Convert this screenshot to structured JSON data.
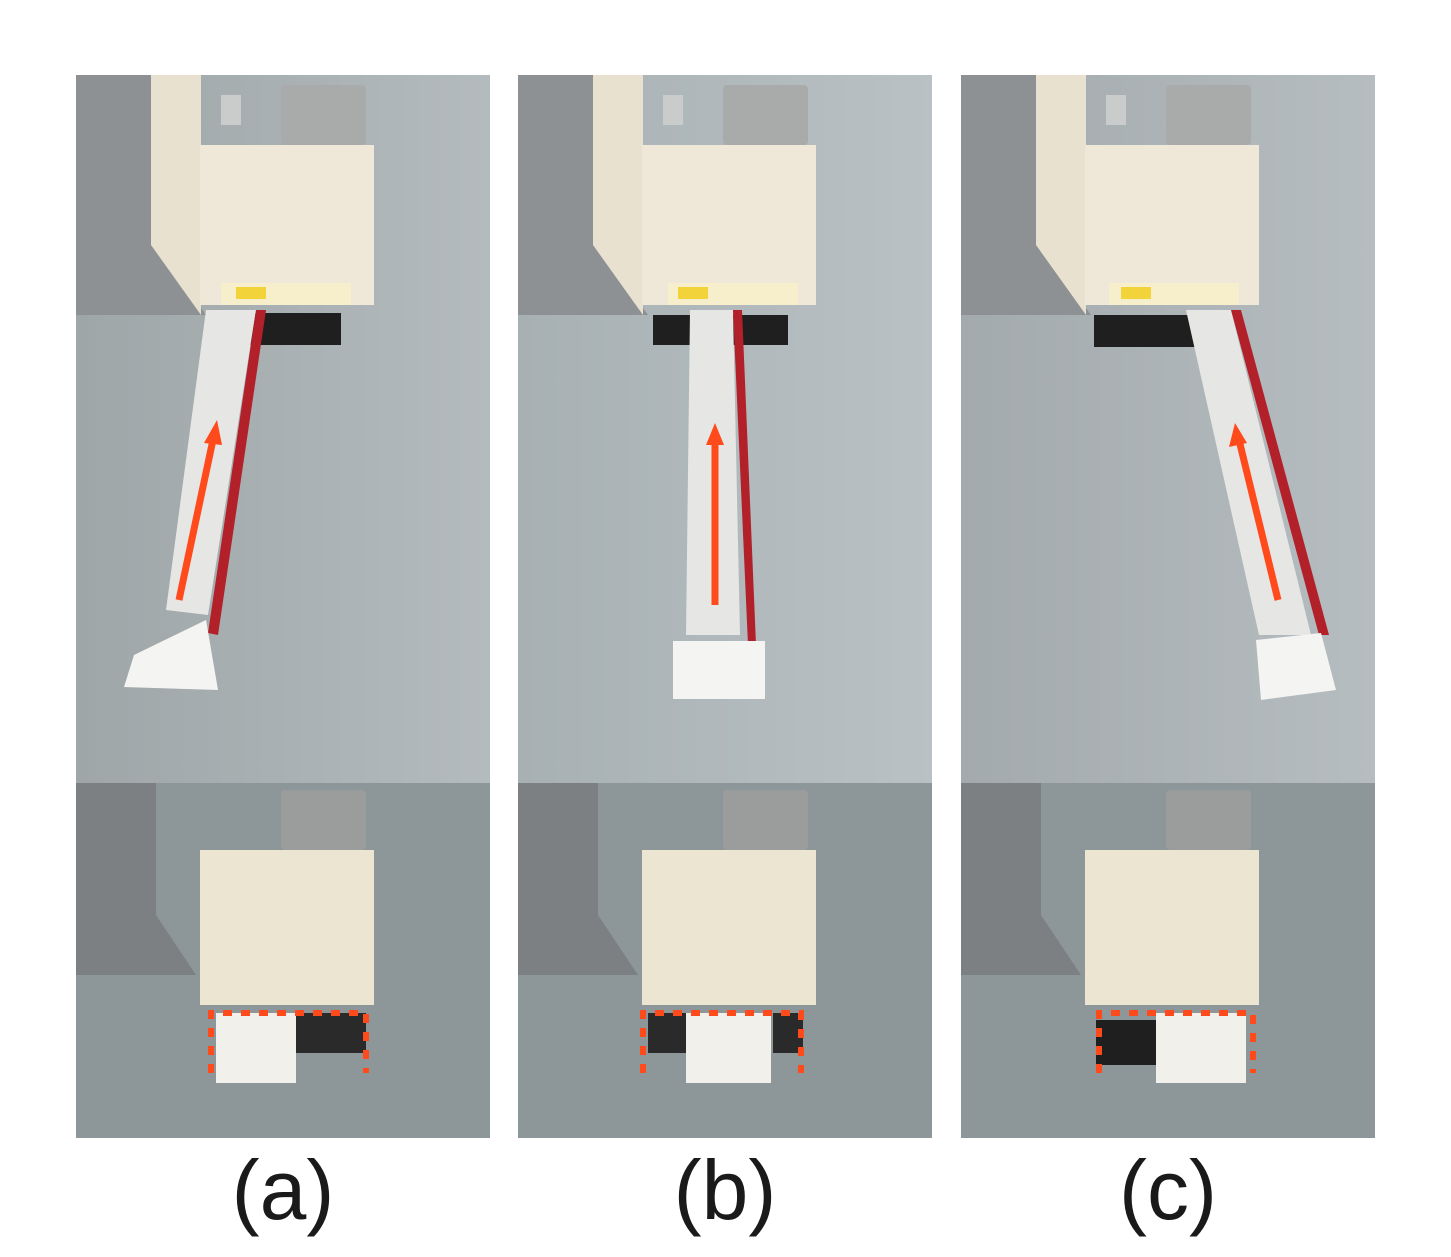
{
  "figure": {
    "panels": [
      {
        "id": "a",
        "caption": "(a)",
        "cable_direction": "tilted-left",
        "connector_offset": "left"
      },
      {
        "id": "b",
        "caption": "(b)",
        "cable_direction": "straight",
        "connector_offset": "center"
      },
      {
        "id": "c",
        "caption": "(c)",
        "cable_direction": "tilted-right",
        "connector_offset": "right"
      }
    ],
    "colors": {
      "arrow": "#ff4a1c",
      "dashed_box": "#ff4a1c",
      "red_wire": "#b2202a",
      "housing": "#efe8d8",
      "metal": "#9a9d9c",
      "background_wall": "#aab1b3",
      "motor": "#2a2a2a"
    },
    "annotations": {
      "top_row": "insertion-direction-arrow",
      "bottom_row": "dashed-highlight-box"
    }
  }
}
